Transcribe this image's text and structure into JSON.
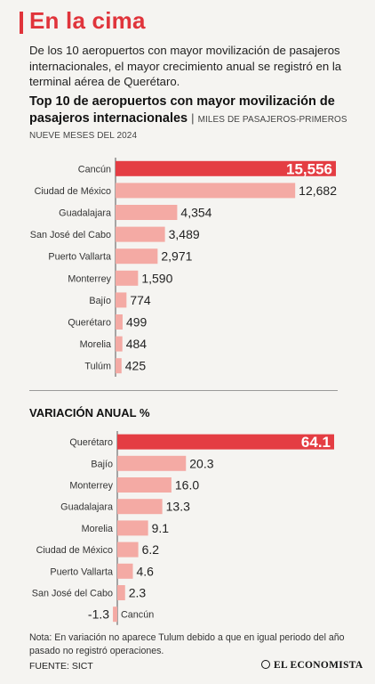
{
  "header": {
    "title": "En la cima",
    "intro": "De los 10 aeropuertos con mayor movilización de pasajeros internacionales, el mayor crecimiento anual se registró en la terminal aérea de Querétaro.",
    "chart1_title": "Top 10 de aeropuertos con mayor movilización de pasajeros internacionales",
    "chart1_separator": "|",
    "chart1_unit": "MILES DE PASAJEROS-PRIMEROS NUEVE MESES DEL 2024",
    "chart2_title": "VARIACIÓN ANUAL %"
  },
  "footer": {
    "note": "Nota: En variación no aparece Tulum debido a que en igual periodo del año pasado no registró operaciones.",
    "source": "FUENTE: SICT",
    "brand": "EL ECONOMISTA"
  },
  "colors": {
    "accent": "#e0343b",
    "bar": "#f4aaa4",
    "highlight": "#e43d43",
    "background": "#f5f4f1"
  },
  "chart_data": [
    {
      "type": "bar",
      "orientation": "horizontal",
      "categories": [
        "Cancún",
        "Ciudad de México",
        "Guadalajara",
        "San José del Cabo",
        "Puerto Vallarta",
        "Monterrey",
        "Bajío",
        "Querétaro",
        "Morelia",
        "Tulúm"
      ],
      "values": [
        15556,
        12682,
        4354,
        3489,
        2971,
        1590,
        774,
        499,
        484,
        425
      ],
      "value_labels": [
        "15,556",
        "12,682",
        "4,354",
        "3,489",
        "2,971",
        "1,590",
        "774",
        "499",
        "484",
        "425"
      ],
      "highlight_index": 0,
      "xlim": [
        0,
        15556
      ]
    },
    {
      "type": "bar",
      "orientation": "horizontal",
      "categories": [
        "Querétaro",
        "Bajío",
        "Monterrey",
        "Guadalajara",
        "Morelia",
        "Ciudad de México",
        "Puerto Vallarta",
        "San José del Cabo",
        "Cancún"
      ],
      "values": [
        64.1,
        20.3,
        16.0,
        13.3,
        9.1,
        6.2,
        4.6,
        2.3,
        -1.3
      ],
      "value_labels": [
        "64.1",
        "20.3",
        "16.0",
        "13.3",
        "9.1",
        "6.2",
        "4.6",
        "2.3",
        "-1.3"
      ],
      "highlight_index": 0,
      "xlim": [
        -1.3,
        64.1
      ]
    }
  ]
}
